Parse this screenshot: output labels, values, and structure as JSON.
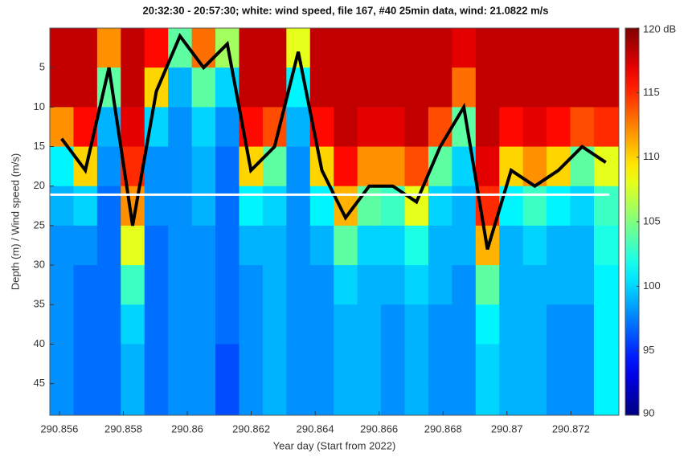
{
  "chart_data": {
    "type": "heatmap",
    "title": "20:32:30 - 20:57:30; white: wind speed, file 167, #40 25min data, wind: 21.0822 m/s",
    "xlabel": "Year day (Start from 2022)",
    "ylabel": "Depth (m) / Wind speed (m/s)",
    "xlim": [
      290.8557,
      290.8735
    ],
    "ylim": [
      0,
      49
    ],
    "y_reversed": true,
    "xticks": [
      290.856,
      290.858,
      290.86,
      290.862,
      290.864,
      290.866,
      290.868,
      290.87,
      290.872
    ],
    "yticks": [
      5,
      10,
      15,
      20,
      25,
      30,
      35,
      40,
      45
    ],
    "xbins": [
      290.8557,
      290.85644,
      290.85718,
      290.85792,
      290.85866,
      290.8594,
      290.86014,
      290.86088,
      290.86162,
      290.86236,
      290.8631,
      290.86384,
      290.86458,
      290.86532,
      290.86606,
      290.8668,
      290.86754,
      290.86828,
      290.86902,
      290.86976,
      290.8705,
      290.87124,
      290.87198,
      290.87272,
      290.8735
    ],
    "ybins": [
      0,
      5,
      10,
      15,
      20,
      25,
      30,
      35,
      40,
      45,
      49
    ],
    "z": [
      [
        118,
        118,
        112,
        101,
        99,
        98,
        98,
        98,
        98,
        98
      ],
      [
        118,
        118,
        116,
        110,
        100,
        98,
        97,
        97,
        97,
        97
      ],
      [
        112,
        104,
        99,
        98,
        97,
        97,
        97,
        97,
        97,
        97
      ],
      [
        118,
        118,
        117,
        115,
        112,
        108,
        103,
        100,
        99,
        99
      ],
      [
        116,
        110,
        100,
        98,
        98,
        97,
        97,
        97,
        97,
        97
      ],
      [
        104,
        99,
        98,
        98,
        98,
        98,
        98,
        98,
        98,
        98
      ],
      [
        113,
        104,
        100,
        99,
        99,
        98,
        98,
        98,
        98,
        98
      ],
      [
        106,
        100,
        98,
        97,
        97,
        97,
        97,
        97,
        96,
        96
      ],
      [
        118,
        118,
        116,
        110,
        101,
        99,
        98,
        98,
        98,
        98
      ],
      [
        118,
        118,
        114,
        104,
        100,
        99,
        99,
        99,
        99,
        99
      ],
      [
        108,
        101,
        99,
        98,
        98,
        98,
        98,
        98,
        98,
        98
      ],
      [
        118,
        118,
        116,
        110,
        101,
        99,
        98,
        98,
        98,
        98
      ],
      [
        118,
        118,
        118,
        116,
        111,
        104,
        100,
        99,
        99,
        99
      ],
      [
        118,
        118,
        117,
        112,
        104,
        100,
        99,
        99,
        99,
        99
      ],
      [
        118,
        118,
        117,
        112,
        103,
        100,
        99,
        98,
        98,
        98
      ],
      [
        118,
        118,
        118,
        114,
        108,
        102,
        100,
        99,
        99,
        99
      ],
      [
        118,
        118,
        114,
        104,
        100,
        99,
        99,
        98,
        98,
        98
      ],
      [
        117,
        113,
        104,
        100,
        99,
        99,
        98,
        98,
        98,
        98
      ],
      [
        118,
        118,
        118,
        117,
        115,
        111,
        104,
        101,
        100,
        100
      ],
      [
        118,
        118,
        116,
        110,
        101,
        99,
        99,
        99,
        99,
        99
      ],
      [
        118,
        118,
        117,
        112,
        103,
        100,
        99,
        99,
        99,
        99
      ],
      [
        118,
        118,
        116,
        110,
        101,
        99,
        99,
        98,
        98,
        98
      ],
      [
        118,
        118,
        114,
        104,
        100,
        99,
        99,
        98,
        98,
        98
      ],
      [
        118,
        118,
        115,
        108,
        103,
        102,
        101,
        101,
        101,
        101
      ]
    ],
    "colormap": "jet",
    "clim": [
      90,
      120
    ],
    "cticks": [
      90,
      95,
      100,
      105,
      110,
      115,
      {
        "value": 120,
        "label": "120 dB"
      }
    ],
    "lines": [
      {
        "color": "#000000",
        "x": [
          290.85607,
          290.85681,
          290.85755,
          290.85829,
          290.85903,
          290.85977,
          290.86051,
          290.86125,
          290.86199,
          290.86273,
          290.86347,
          290.86421,
          290.86495,
          290.86569,
          290.86643,
          290.86717,
          290.86791,
          290.86865,
          290.86939,
          290.87013,
          290.87087,
          290.87161,
          290.87235,
          290.87309
        ],
        "values": [
          14,
          18,
          5,
          25,
          8,
          1,
          5,
          2,
          18,
          15,
          3,
          18,
          24,
          20,
          20,
          22,
          15,
          10,
          28,
          18,
          20,
          18,
          15,
          17
        ]
      },
      {
        "color": "#ffffff",
        "x": [
          290.8557,
          290.8732
        ],
        "values": [
          21.0822,
          21.0822
        ]
      }
    ]
  }
}
